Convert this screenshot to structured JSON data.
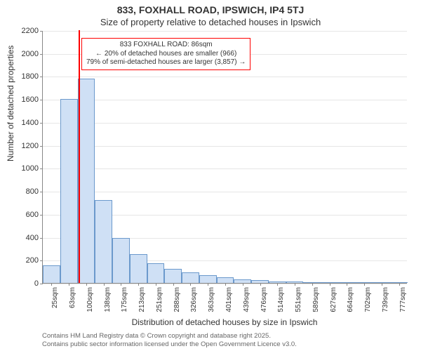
{
  "title_line1": "833, FOXHALL ROAD, IPSWICH, IP4 5TJ",
  "title_line2": "Size of property relative to detached houses in Ipswich",
  "ylabel": "Number of detached properties",
  "xlabel": "Distribution of detached houses by size in Ipswich",
  "credit_line1": "Contains HM Land Registry data © Crown copyright and database right 2025.",
  "credit_line2": "Contains public sector information licensed under the Open Government Licence v3.0.",
  "chart": {
    "type": "histogram",
    "ylim": [
      0,
      2200
    ],
    "ytick_step": 200,
    "plot_bg": "#ffffff",
    "grid_color": "#e6e6e6",
    "axis_color": "#888888",
    "bar_fill": "#cfe0f5",
    "bar_border": "#6b99cc",
    "bar_border_width": 1,
    "marker_color": "#ff0000",
    "marker_x_value": 86,
    "bin_start": 6.5,
    "bin_width": 37.5,
    "bars": [
      150,
      1600,
      1780,
      720,
      390,
      250,
      170,
      120,
      90,
      65,
      50,
      30,
      25,
      15,
      10,
      8,
      5,
      3,
      2,
      1,
      1
    ],
    "xtick_values": [
      25,
      63,
      100,
      138,
      175,
      213,
      251,
      288,
      326,
      363,
      401,
      439,
      476,
      514,
      551,
      589,
      627,
      664,
      702,
      739,
      777
    ],
    "xtick_suffix": "sqm",
    "title_fontsize": 14,
    "subtitle_fontsize": 13,
    "axis_label_fontsize": 12,
    "tick_fontsize": 11,
    "xtick_fontsize": 10
  },
  "annotation": {
    "lines": [
      "833 FOXHALL ROAD: 86sqm",
      "← 20% of detached houses are smaller (966)",
      "79% of semi-detached houses are larger (3,857) →"
    ],
    "border_color": "#ff0000",
    "bg_color": "#ffffff",
    "text_color": "#333333",
    "fontsize": 10
  }
}
